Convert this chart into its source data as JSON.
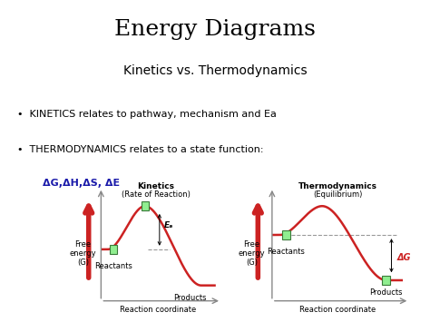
{
  "title": "Energy Diagrams",
  "subtitle": "Kinetics vs. Thermodynamics",
  "bullet1": "•  KINETICS relates to pathway, mechanism and Ea",
  "bullet2_line1": "•  THERMODYNAMICS relates to a state function:",
  "bullet2_line2": "ΔG,ΔH,ΔS, ΔE",
  "left_title": "Kinetics",
  "left_subtitle": "(Rate of Reaction)",
  "right_title": "Thermodynamics",
  "right_subtitle": "(Equilibrium)",
  "xlabel": "Reaction coordinate",
  "ylabel_line1": "Free",
  "ylabel_line2": "energy",
  "ylabel_line3": "(G)",
  "reactants_label": "Reactants",
  "products_label_left": "Products",
  "products_label_right": "Products",
  "ea_label": "Eₐ",
  "dg_label": "ΔG",
  "bg_color": "#ffffff",
  "curve_color": "#cc2222",
  "big_arrow_color": "#cc2222",
  "axis_color": "#888888",
  "box_facecolor": "#90ee90",
  "box_edgecolor": "#3a7a3a",
  "dashed_color": "#999999",
  "title_color": "#000000",
  "subtitle_color": "#000000",
  "bullet_color": "#000000",
  "dg_text_color": "#cc2222",
  "delta_text_color": "#1a1aaa",
  "title_fontsize": 18,
  "subtitle_fontsize": 10,
  "bullet_fontsize": 8,
  "delta_fontsize": 8,
  "diagram_title_fontsize": 6.5,
  "label_fontsize": 6,
  "xlabel_fontsize": 6,
  "ylabel_fontsize": 6
}
